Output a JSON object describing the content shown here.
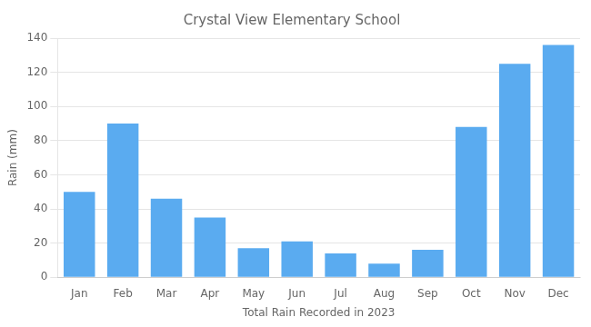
{
  "chart_data": {
    "type": "bar",
    "title": "Crystal View Elementary School",
    "xlabel": "Total Rain Recorded in 2023",
    "ylabel": "Rain (mm)",
    "categories": [
      "Jan",
      "Feb",
      "Mar",
      "Apr",
      "May",
      "Jun",
      "Jul",
      "Aug",
      "Sep",
      "Oct",
      "Nov",
      "Dec"
    ],
    "values": [
      50,
      90,
      46,
      35,
      17,
      21,
      14,
      8,
      16,
      88,
      125,
      136
    ],
    "color": "#5aabf0",
    "ylim": [
      0,
      140
    ],
    "yticks": [
      0,
      20,
      40,
      60,
      80,
      100,
      120,
      140
    ],
    "grid": true
  }
}
